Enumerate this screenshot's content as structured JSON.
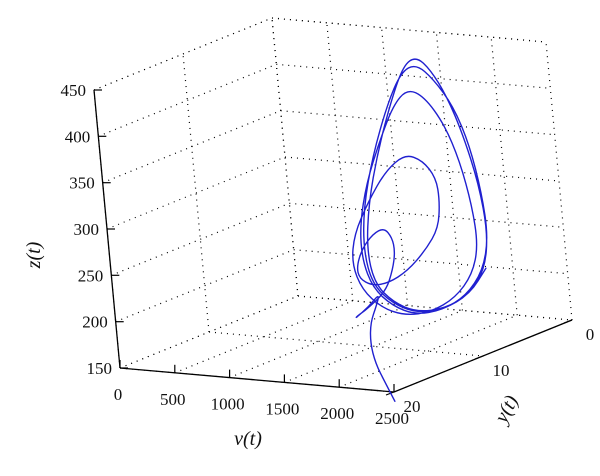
{
  "chart_data": {
    "type": "line",
    "projection": "3d",
    "x_axis": {
      "label": "v(t)",
      "range": [
        0,
        2500
      ],
      "ticks": [
        0,
        500,
        1000,
        1500,
        2000,
        2500
      ]
    },
    "y_axis": {
      "label": "y(t)",
      "range": [
        0,
        20
      ],
      "ticks": [
        0,
        10,
        20
      ]
    },
    "z_axis": {
      "label": "z(t)",
      "range": [
        150,
        450
      ],
      "ticks": [
        150,
        200,
        250,
        300,
        350,
        400,
        450
      ]
    },
    "grid": true,
    "series": [
      {
        "color": "#2020d0",
        "points": [
          [
            2500,
            20,
            140
          ],
          [
            2300,
            18.5,
            152
          ],
          [
            2100,
            17,
            165
          ],
          [
            1900,
            15,
            178
          ],
          [
            1750,
            13,
            190
          ],
          [
            1650,
            11,
            200
          ],
          [
            1600,
            10,
            208
          ],
          [
            1620,
            11.5,
            200
          ],
          [
            1700,
            14,
            198
          ],
          [
            1800,
            15,
            205
          ],
          [
            1900,
            15,
            214
          ],
          [
            2000,
            14,
            230
          ],
          [
            2000,
            13,
            250
          ],
          [
            1950,
            12,
            265
          ],
          [
            1850,
            11,
            275
          ],
          [
            1700,
            10,
            280
          ],
          [
            1550,
            9.5,
            270
          ],
          [
            1480,
            10,
            255
          ],
          [
            1500,
            11,
            240
          ],
          [
            1600,
            12,
            232
          ],
          [
            1750,
            12.5,
            228
          ],
          [
            1900,
            12.5,
            232
          ],
          [
            2050,
            12,
            245
          ],
          [
            2150,
            11,
            265
          ],
          [
            2200,
            10,
            285
          ],
          [
            2150,
            9,
            310
          ],
          [
            2050,
            8,
            330
          ],
          [
            1900,
            7.5,
            345
          ],
          [
            1700,
            7,
            348
          ],
          [
            1550,
            7.5,
            330
          ],
          [
            1450,
            8.5,
            300
          ],
          [
            1420,
            10,
            270
          ],
          [
            1500,
            11.5,
            245
          ],
          [
            1700,
            13,
            225
          ],
          [
            1950,
            14,
            212
          ],
          [
            2200,
            14.5,
            208
          ],
          [
            2400,
            14,
            212
          ],
          [
            2550,
            13,
            225
          ],
          [
            2600,
            11.5,
            245
          ],
          [
            2550,
            10,
            270
          ],
          [
            2400,
            8.5,
            305
          ],
          [
            2200,
            7,
            345
          ],
          [
            2000,
            6,
            380
          ],
          [
            1800,
            5.5,
            405
          ],
          [
            1650,
            5.5,
            412
          ],
          [
            1550,
            6,
            395
          ],
          [
            1480,
            7,
            360
          ],
          [
            1450,
            8.5,
            320
          ],
          [
            1480,
            10,
            280
          ],
          [
            1600,
            11.5,
            250
          ],
          [
            1800,
            13,
            228
          ],
          [
            2050,
            14,
            215
          ],
          [
            2300,
            14.5,
            210
          ],
          [
            2500,
            14,
            215
          ],
          [
            2650,
            13,
            228
          ],
          [
            2700,
            11.5,
            250
          ],
          [
            2650,
            10,
            280
          ],
          [
            2500,
            8.5,
            320
          ],
          [
            2300,
            7,
            365
          ],
          [
            2100,
            6,
            400
          ],
          [
            1900,
            5.5,
            425
          ],
          [
            1750,
            5.5,
            440
          ],
          [
            1650,
            6,
            432
          ],
          [
            1580,
            7,
            400
          ],
          [
            1530,
            8.5,
            350
          ],
          [
            1530,
            10,
            300
          ],
          [
            1620,
            11.5,
            260
          ],
          [
            1800,
            13,
            232
          ],
          [
            2050,
            14,
            218
          ],
          [
            2300,
            14.5,
            212
          ],
          [
            2520,
            14,
            216
          ],
          [
            2680,
            13,
            230
          ],
          [
            2720,
            11.5,
            252
          ],
          [
            2650,
            10,
            285
          ],
          [
            2480,
            8.5,
            330
          ],
          [
            2250,
            7,
            375
          ],
          [
            2050,
            6,
            410
          ],
          [
            1880,
            5.5,
            435
          ],
          [
            1760,
            5.5,
            448
          ],
          [
            1680,
            6,
            440
          ],
          [
            1620,
            7,
            405
          ],
          [
            1580,
            8.5,
            355
          ],
          [
            1580,
            10,
            305
          ],
          [
            1650,
            11.5,
            262
          ],
          [
            1820,
            13,
            233
          ],
          [
            2060,
            14,
            219
          ],
          [
            2310,
            14.5,
            213
          ],
          [
            2530,
            14,
            217
          ],
          [
            2690,
            13,
            231
          ],
          [
            2730,
            11.5,
            253
          ]
        ]
      }
    ]
  }
}
